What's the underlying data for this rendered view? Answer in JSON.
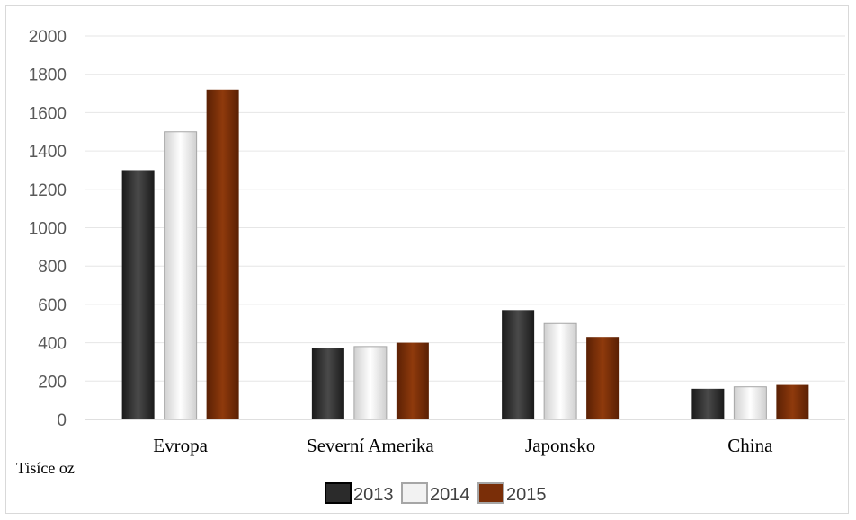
{
  "chart_data": {
    "type": "bar",
    "categories": [
      "Evropa",
      "Severní Amerika",
      "Japonsko",
      "China"
    ],
    "series": [
      {
        "name": "2013",
        "values": [
          1300,
          370,
          570,
          160
        ],
        "color": "#2b2b2b"
      },
      {
        "name": "2014",
        "values": [
          1500,
          380,
          500,
          170
        ],
        "color": "#f2f2f2"
      },
      {
        "name": "2015",
        "values": [
          1720,
          400,
          430,
          180
        ],
        "color": "#7a2e08"
      }
    ],
    "ylim": [
      0,
      2000
    ],
    "yticks": [
      0,
      200,
      400,
      600,
      800,
      1000,
      1200,
      1400,
      1600,
      1800,
      2000
    ],
    "unit_label": "Tisíce oz",
    "grid": true,
    "legend_position": "bottom"
  }
}
